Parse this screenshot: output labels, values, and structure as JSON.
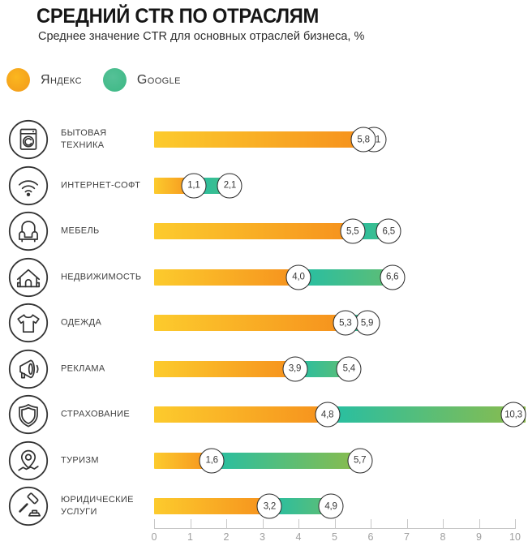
{
  "header": {
    "title": "СРЕДНИЙ CTR ПО ОТРАСЛЯМ",
    "subtitle": "Среднее значение CTR для основных отраслей бизнеса, %"
  },
  "legend": {
    "items": [
      {
        "name": "yandex",
        "label": "Яндекс",
        "color": "#F7A117"
      },
      {
        "name": "google",
        "label": "Google",
        "color": "#46BD8C"
      }
    ]
  },
  "chart_data": {
    "type": "bar",
    "orientation": "horizontal",
    "title": "СРЕДНИЙ CTR ПО ОТРАСЛЯМ",
    "subtitle": "Среднее значение CTR для основных отраслей бизнеса, %",
    "unit": "%",
    "xlim": [
      0,
      10
    ],
    "x_ticks": [
      "0",
      "1",
      "2",
      "3",
      "4",
      "5",
      "6",
      "7",
      "8",
      "9",
      "10"
    ],
    "grid": false,
    "legend_position": "top-left",
    "categories": [
      "БЫТОВАЯ ТЕХНИКА",
      "ИНТЕРНЕТ-СОФТ",
      "МЕБЕЛЬ",
      "НЕДВИЖИМОСТЬ",
      "ОДЕЖДА",
      "РЕКЛАМА",
      "СТРАХОВАНИЕ",
      "ТУРИЗМ",
      "ЮРИДИЧЕСКИЕ УСЛУГИ"
    ],
    "icons": [
      "washing-machine-icon",
      "wifi-icon",
      "armchair-icon",
      "house-icon",
      "tshirt-icon",
      "megaphone-icon",
      "shield-icon",
      "map-pin-icon",
      "gavel-icon"
    ],
    "series": [
      {
        "name": "Яндекс",
        "gradient": [
          "#FCCB2D",
          "#F6911D"
        ],
        "values": [
          5.8,
          1.1,
          5.5,
          4.0,
          5.3,
          3.9,
          4.8,
          1.6,
          3.2
        ],
        "labels": [
          "5,8",
          "1,1",
          "5,5",
          "4,0",
          "5,3",
          "3,9",
          "4,8",
          "1,6",
          "3,2"
        ]
      },
      {
        "name": "Google",
        "gradient": [
          "#25BFA4",
          "#8CBC4B"
        ],
        "values": [
          6.1,
          2.1,
          6.5,
          6.6,
          5.9,
          5.4,
          10.3,
          5.7,
          4.9
        ],
        "labels": [
          "6,1",
          "2,1",
          "6,5",
          "6,6",
          "5,9",
          "5,4",
          "10,3",
          "5,7",
          "4,9"
        ]
      }
    ]
  }
}
